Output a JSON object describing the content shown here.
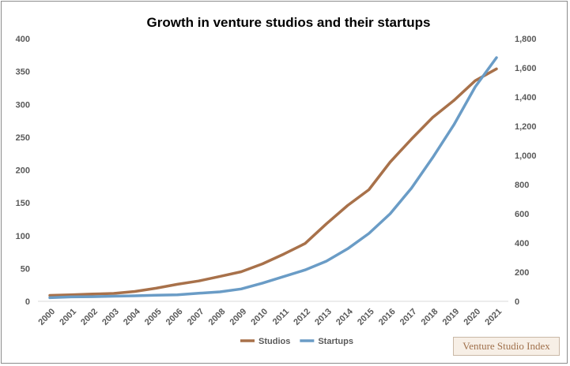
{
  "chart_data": {
    "type": "line",
    "title": "Growth in venture studios and their startups",
    "x": [
      "2000",
      "2001",
      "2002",
      "2003",
      "2004",
      "2005",
      "2006",
      "2007",
      "2008",
      "2009",
      "2010",
      "2011",
      "2012",
      "2013",
      "2014",
      "2015",
      "2016",
      "2017",
      "2018",
      "2019",
      "2020",
      "2021"
    ],
    "series": [
      {
        "name": "Studios",
        "axis": "left",
        "color": "#a8714a",
        "values": [
          9,
          10,
          11,
          12,
          15,
          20,
          26,
          31,
          38,
          45,
          57,
          72,
          88,
          118,
          146,
          170,
          212,
          247,
          280,
          306,
          336,
          354
        ]
      },
      {
        "name": "Startups",
        "axis": "right",
        "color": "#6a9cc6",
        "values": [
          25,
          30,
          32,
          35,
          38,
          42,
          45,
          55,
          65,
          85,
          125,
          170,
          215,
          275,
          360,
          465,
          600,
          775,
          985,
          1210,
          1470,
          1670
        ]
      }
    ],
    "y_left": {
      "min": 0,
      "max": 400,
      "ticks": [
        "0",
        "50",
        "100",
        "150",
        "200",
        "250",
        "300",
        "350",
        "400"
      ]
    },
    "y_right": {
      "min": 0,
      "max": 1800,
      "ticks": [
        "0",
        "200",
        "400",
        "600",
        "800",
        "1,000",
        "1,200",
        "1,400",
        "1,600",
        "1,800"
      ]
    },
    "grid": false,
    "legend_position": "bottom",
    "xlabel": "",
    "ylabel": ""
  },
  "watermark": "Venture Studio Index"
}
